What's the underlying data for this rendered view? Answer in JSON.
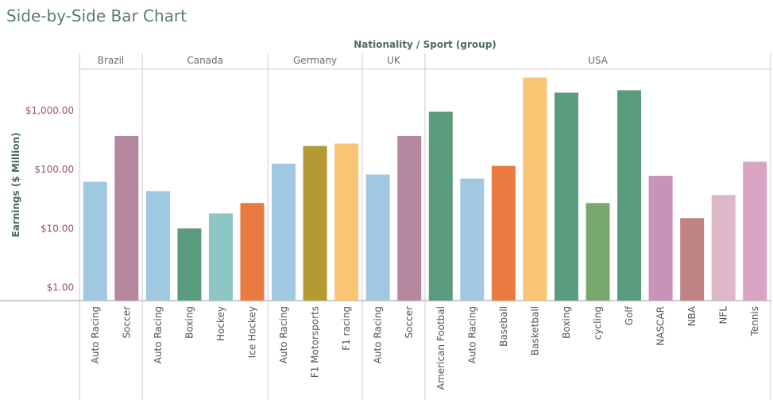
{
  "title": "Side-by-Side Bar Chart",
  "chart_data": {
    "type": "bar",
    "header": "Nationality / Sport (group)",
    "ylabel": "Earnings ($ Million)",
    "yscale": "log",
    "ylim": [
      0.6,
      5000
    ],
    "yticks": [
      {
        "value": 1,
        "label": "$1.00"
      },
      {
        "value": 10,
        "label": "$10.00"
      },
      {
        "value": 100,
        "label": "$100.00"
      },
      {
        "value": 1000,
        "label": "$1,000.00"
      }
    ],
    "groups": [
      {
        "name": "Brazil",
        "bars": [
          {
            "label": "Auto Racing",
            "value": 62,
            "color": "#a0c8e0"
          },
          {
            "label": "Soccer",
            "value": 370,
            "color": "#b5889f"
          }
        ]
      },
      {
        "name": "Canada",
        "bars": [
          {
            "label": "Auto Racing",
            "value": 43,
            "color": "#a0c8e0"
          },
          {
            "label": "Boxing",
            "value": 10,
            "color": "#5a9a7d"
          },
          {
            "label": "Hockey",
            "value": 18,
            "color": "#8ec6c5"
          },
          {
            "label": "Ice Hockey",
            "value": 27,
            "color": "#e97a40"
          }
        ]
      },
      {
        "name": "Germany",
        "bars": [
          {
            "label": "Auto Racing",
            "value": 125,
            "color": "#a0c8e0"
          },
          {
            "label": "F1 Motorsports",
            "value": 250,
            "color": "#b49a32"
          },
          {
            "label": "F1 racing",
            "value": 275,
            "color": "#f7c574"
          }
        ]
      },
      {
        "name": "UK",
        "bars": [
          {
            "label": "Auto Racing",
            "value": 82,
            "color": "#a0c8e0"
          },
          {
            "label": "Soccer",
            "value": 370,
            "color": "#b5889f"
          }
        ]
      },
      {
        "name": "USA",
        "bars": [
          {
            "label": "American Footbal",
            "value": 950,
            "color": "#5a9a7d"
          },
          {
            "label": "Auto Racing",
            "value": 70,
            "color": "#a0c8e0"
          },
          {
            "label": "Baseball",
            "value": 115,
            "color": "#e97a40"
          },
          {
            "label": "Basketball",
            "value": 3600,
            "color": "#f7c574"
          },
          {
            "label": "Boxing",
            "value": 2000,
            "color": "#5a9a7d"
          },
          {
            "label": "cycling",
            "value": 27,
            "color": "#79a86c"
          },
          {
            "label": "Golf",
            "value": 2200,
            "color": "#5a9a7d"
          },
          {
            "label": "NASCAR",
            "value": 78,
            "color": "#c793b9"
          },
          {
            "label": "NBA",
            "value": 15,
            "color": "#c08384"
          },
          {
            "label": "NFL",
            "value": 37,
            "color": "#dcb8c9"
          },
          {
            "label": "Tennis",
            "value": 135,
            "color": "#d9a3c4"
          }
        ]
      }
    ]
  }
}
